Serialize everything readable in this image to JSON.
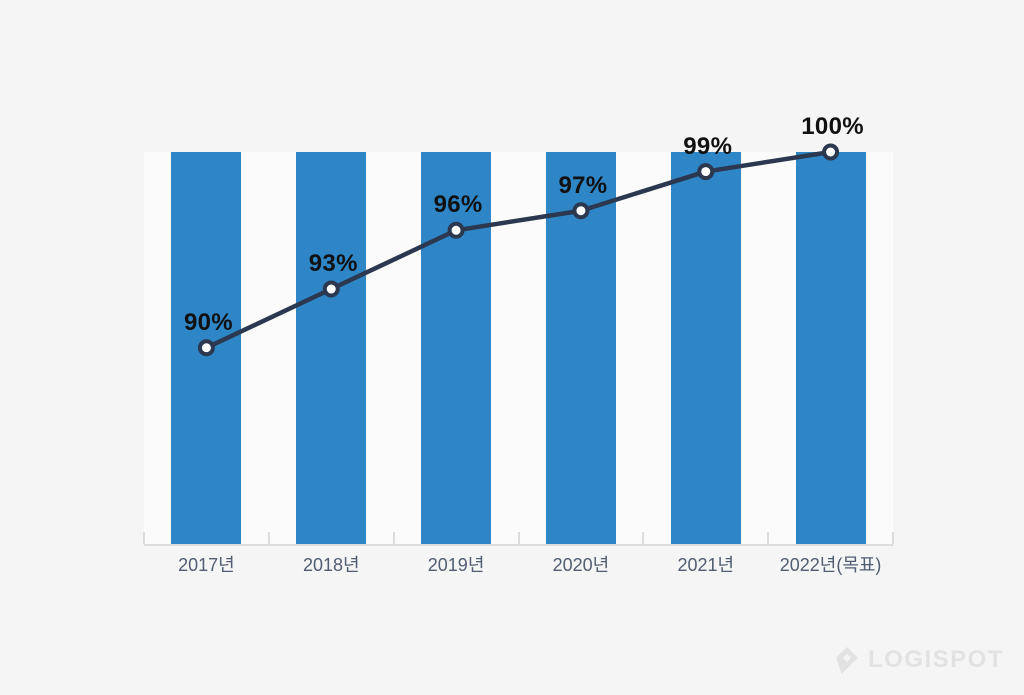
{
  "page": {
    "background_color": "#f5f5f5"
  },
  "chart_data": {
    "type": "bar",
    "title": "",
    "categories": [
      "2017년",
      "2018년",
      "2019년",
      "2020년",
      "2021년",
      "2022년(목표)"
    ],
    "series": [
      {
        "name": "background-columns",
        "type": "bar",
        "values": [
          100,
          100,
          100,
          100,
          100,
          100
        ]
      },
      {
        "name": "percentage-line",
        "type": "line",
        "values": [
          90,
          93,
          96,
          97,
          99,
          100
        ]
      }
    ],
    "point_labels": [
      "90%",
      "93%",
      "96%",
      "97%",
      "99%",
      "100%"
    ],
    "xlabel": "",
    "ylabel": "",
    "ylim": [
      80,
      100
    ],
    "grid": false,
    "legend_position": "none",
    "value_axis_visible": false,
    "colors": {
      "bar": "#2e86c7",
      "line": "#2b384f",
      "marker_fill": "#ffffff",
      "marker_stroke": "#2b384f",
      "point_label": "#111111",
      "category_label": "#515d72",
      "axis": "#dcdcdc",
      "plot_background": "#fbfbfb",
      "page_background": "#f5f5f5"
    }
  },
  "watermark": {
    "brand": "LOGISPOT",
    "icon": "diamond-pin-icon",
    "color": "#e2e2e2"
  }
}
